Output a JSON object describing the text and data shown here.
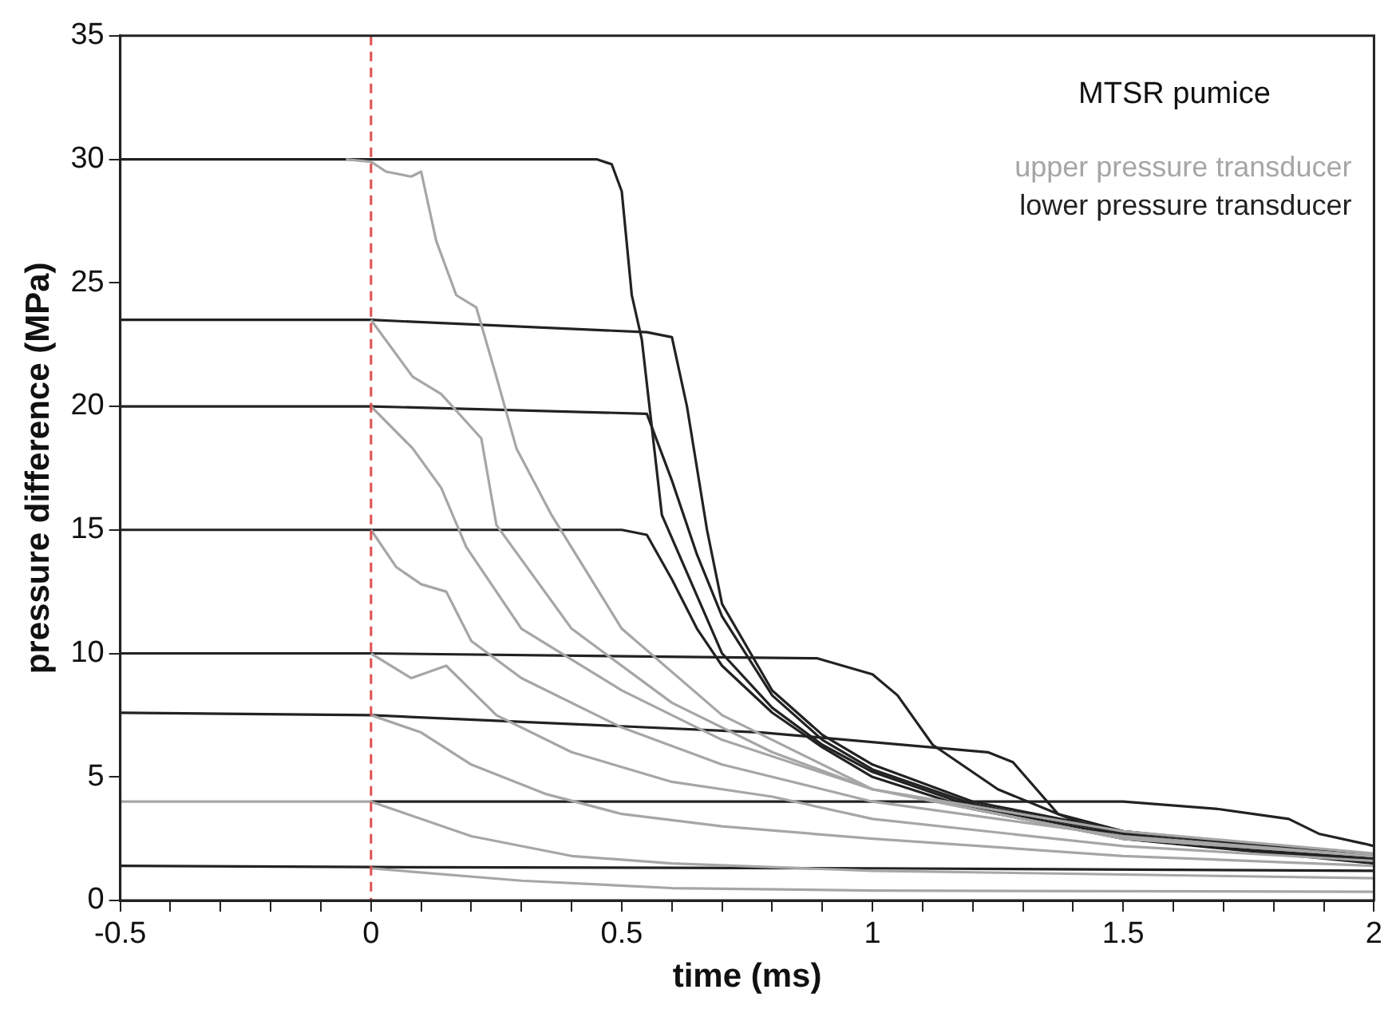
{
  "chart_data": {
    "type": "line",
    "title": "MTSR pumice",
    "xlabel": "time (ms)",
    "ylabel": "pressure difference (MPa)",
    "xlim": [
      -0.5,
      2
    ],
    "ylim": [
      0,
      35
    ],
    "xticks": [
      -0.5,
      {
        "value": -0.4,
        "label": null
      },
      {
        "value": -0.3,
        "label": null
      },
      {
        "value": -0.2,
        "label": null
      },
      {
        "value": -0.1,
        "label": null
      },
      0,
      {
        "value": 0.1,
        "label": null
      },
      {
        "value": 0.2,
        "label": null
      },
      {
        "value": 0.3,
        "label": null
      },
      {
        "value": 0.4,
        "label": null
      },
      0.5,
      {
        "value": 0.6,
        "label": null
      },
      {
        "value": 0.7,
        "label": null
      },
      {
        "value": 0.8,
        "label": null
      },
      {
        "value": 0.9,
        "label": null
      },
      1,
      {
        "value": 1.1,
        "label": null
      },
      {
        "value": 1.2,
        "label": null
      },
      {
        "value": 1.3,
        "label": null
      },
      {
        "value": 1.4,
        "label": null
      },
      1.5,
      {
        "value": 1.6,
        "label": null
      },
      {
        "value": 1.7,
        "label": null
      },
      {
        "value": 1.8,
        "label": null
      },
      {
        "value": 1.9,
        "label": null
      },
      2
    ],
    "yticks": [
      0,
      5,
      10,
      15,
      20,
      25,
      30,
      35
    ],
    "legend": "top right",
    "ref_lines": [
      {
        "axis": "x",
        "value": 0,
        "color": "#e05050",
        "line_style": "dashed"
      }
    ],
    "series": [
      {
        "name": "upper pressure transducer",
        "color": "#a6a6a6",
        "x": [
          -0.05,
          0,
          0.03,
          0.08,
          0.1,
          0.13,
          0.17,
          0.21,
          0.25,
          0.29,
          0.36,
          0.5,
          0.7,
          1,
          1.5,
          2
        ],
        "values": [
          30,
          29.9,
          29.5,
          29.3,
          29.5,
          26.7,
          24.5,
          24,
          21.2,
          18.3,
          15.6,
          11,
          7.5,
          4.5,
          2.5,
          1.8
        ]
      },
      {
        "color": "#a6a6a6",
        "x": [
          0,
          0.083,
          0.14,
          0.22,
          0.25,
          0.4,
          0.6,
          0.8,
          1,
          1.5,
          2
        ],
        "values": [
          23.5,
          21.2,
          20.5,
          18.7,
          15.2,
          11,
          8,
          6,
          4.5,
          2.5,
          1.8
        ]
      },
      {
        "color": "#a6a6a6",
        "x": [
          0,
          0.083,
          0.14,
          0.19,
          0.3,
          0.5,
          0.7,
          1,
          1.5,
          2
        ],
        "values": [
          20,
          18.3,
          16.7,
          14.3,
          11,
          8.5,
          6.5,
          4.5,
          2.8,
          1.9
        ]
      },
      {
        "color": "#a6a6a6",
        "x": [
          0,
          0.05,
          0.1,
          0.15,
          0.2,
          0.3,
          0.5,
          0.7,
          1,
          1.5,
          2
        ],
        "values": [
          15,
          13.5,
          12.8,
          12.5,
          10.5,
          9,
          7,
          5.5,
          4,
          2.6,
          1.8
        ]
      },
      {
        "color": "#a6a6a6",
        "x": [
          0,
          0.08,
          0.15,
          0.25,
          0.4,
          0.6,
          0.8,
          1,
          1.5,
          2
        ],
        "values": [
          10,
          9,
          9.5,
          7.5,
          6,
          4.8,
          4.2,
          3.3,
          2.2,
          1.6
        ]
      },
      {
        "color": "#a6a6a6",
        "x": [
          0,
          0.1,
          0.2,
          0.35,
          0.5,
          0.7,
          1,
          1.5,
          2
        ],
        "values": [
          7.5,
          6.8,
          5.5,
          4.3,
          3.5,
          3,
          2.5,
          1.8,
          1.4
        ]
      },
      {
        "color": "#a6a6a6",
        "x": [
          -0.5,
          0,
          0.2,
          0.4,
          0.6,
          1,
          2
        ],
        "values": [
          4,
          4,
          2.6,
          1.8,
          1.5,
          1.2,
          0.9
        ]
      },
      {
        "color": "#a6a6a6",
        "x": [
          0,
          0.3,
          0.6,
          1,
          2
        ],
        "values": [
          1.3,
          0.8,
          0.5,
          0.4,
          0.35
        ]
      },
      {
        "name": "lower pressure transducer",
        "color": "#222222",
        "x": [
          -0.5,
          0,
          0.45,
          0.48,
          0.5,
          0.52,
          0.54,
          0.58,
          0.7,
          0.8,
          0.9,
          1,
          1.2,
          1.5,
          1.8,
          2
        ],
        "values": [
          30,
          30,
          30,
          29.8,
          28.7,
          24.5,
          22.7,
          15.6,
          10,
          7.8,
          6.3,
          5.2,
          3.8,
          2.6,
          2,
          1.7
        ]
      },
      {
        "color": "#222222",
        "x": [
          -0.5,
          0,
          0.55,
          0.6,
          0.63,
          0.67,
          0.7,
          0.8,
          0.9,
          1,
          1.2,
          1.5,
          1.8,
          2
        ],
        "values": [
          23.5,
          23.5,
          23,
          22.8,
          20,
          15,
          12,
          8.5,
          6.7,
          5.5,
          4,
          2.8,
          2.1,
          1.8
        ]
      },
      {
        "color": "#222222",
        "x": [
          -0.5,
          0,
          0.55,
          0.6,
          0.65,
          0.7,
          0.8,
          0.9,
          1,
          1.2,
          1.5,
          1.8,
          2
        ],
        "values": [
          20,
          20,
          19.7,
          17,
          14,
          11.5,
          8.3,
          6.5,
          5.3,
          3.9,
          2.7,
          2,
          1.6
        ]
      },
      {
        "color": "#222222",
        "x": [
          -0.5,
          0,
          0.5,
          0.55,
          0.6,
          0.65,
          0.7,
          0.8,
          0.9,
          1,
          1.2,
          1.5,
          1.8,
          2
        ],
        "values": [
          15,
          15,
          15,
          14.8,
          13,
          11,
          9.5,
          7.6,
          6.2,
          5,
          3.7,
          2.5,
          1.9,
          1.5
        ]
      },
      {
        "color": "#222222",
        "x": [
          -0.5,
          0,
          0.89,
          1,
          1.05,
          1.12,
          1.25,
          1.37,
          1.5,
          2
        ],
        "values": [
          10,
          10,
          9.8,
          9.15,
          8.3,
          6.3,
          4.5,
          3.5,
          2.5,
          1.6
        ]
      },
      {
        "color": "#222222",
        "x": [
          -0.5,
          0,
          0.78,
          1.23,
          1.28,
          1.37,
          1.5,
          2
        ],
        "values": [
          7.6,
          7.5,
          6.8,
          6,
          5.6,
          3.5,
          2.8,
          1.8
        ]
      },
      {
        "color": "#222222",
        "x": [
          0,
          1.5,
          1.69,
          1.83,
          1.89,
          1.98,
          2
        ],
        "values": [
          4,
          4,
          3.7,
          3.3,
          2.7,
          2.3,
          2.2
        ]
      },
      {
        "color": "#222222",
        "x": [
          -0.5,
          0,
          1,
          2
        ],
        "values": [
          1.4,
          1.35,
          1.3,
          1.2
        ]
      }
    ]
  }
}
